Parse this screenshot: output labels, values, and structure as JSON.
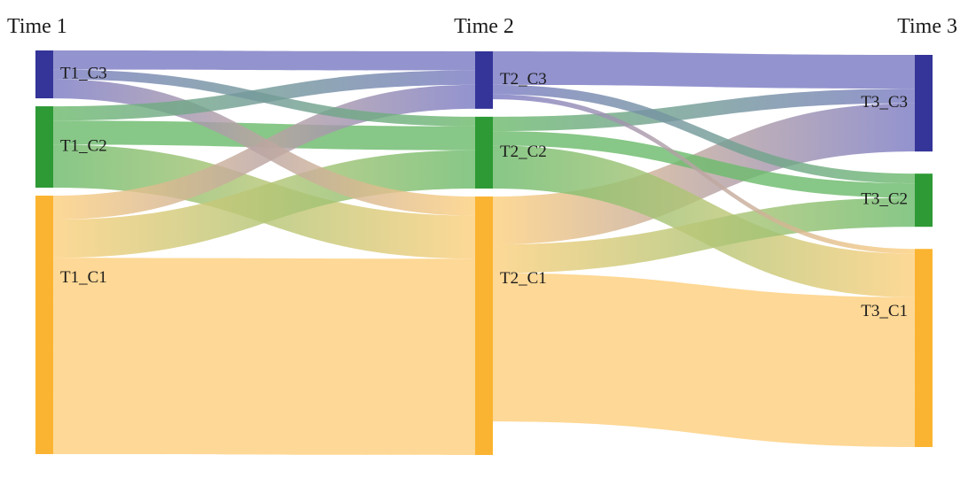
{
  "colors": {
    "C1": "#fbb431",
    "C2": "#2e9a35",
    "C3": "#343499",
    "link_C1": "#fdd07f",
    "link_C2": "#6dbb6d",
    "link_C3": "#7b7bc4"
  },
  "times": [
    {
      "label": "Time 1"
    },
    {
      "label": "Time 2"
    },
    {
      "label": "Time 3"
    }
  ],
  "nodes": [
    {
      "id": "T1_C3",
      "label": "T1_C3",
      "time": 0,
      "cluster": "C3",
      "value": 10
    },
    {
      "id": "T1_C2",
      "label": "T1_C2",
      "time": 0,
      "cluster": "C2",
      "value": 17
    },
    {
      "id": "T1_C1",
      "label": "T1_C1",
      "time": 0,
      "cluster": "C1",
      "value": 54
    },
    {
      "id": "T2_C3",
      "label": "T2_C3",
      "time": 1,
      "cluster": "C3",
      "value": 12
    },
    {
      "id": "T2_C2",
      "label": "T2_C2",
      "time": 1,
      "cluster": "C2",
      "value": 15
    },
    {
      "id": "T2_C1",
      "label": "T2_C1",
      "time": 1,
      "cluster": "C1",
      "value": 54
    },
    {
      "id": "T3_C3",
      "label": "T3_C3",
      "time": 2,
      "cluster": "C3",
      "value": 20
    },
    {
      "id": "T3_C2",
      "label": "T3_C2",
      "time": 2,
      "cluster": "C2",
      "value": 11
    },
    {
      "id": "T3_C1",
      "label": "T3_C1",
      "time": 2,
      "cluster": "C1",
      "value": 41
    }
  ],
  "links": [
    {
      "source": "T1_C3",
      "target": "T2_C3",
      "value": 4
    },
    {
      "source": "T1_C3",
      "target": "T2_C2",
      "value": 2
    },
    {
      "source": "T1_C3",
      "target": "T2_C1",
      "value": 4
    },
    {
      "source": "T1_C2",
      "target": "T2_C3",
      "value": 3
    },
    {
      "source": "T1_C2",
      "target": "T2_C2",
      "value": 5
    },
    {
      "source": "T1_C2",
      "target": "T2_C1",
      "value": 9
    },
    {
      "source": "T1_C1",
      "target": "T2_C3",
      "value": 5
    },
    {
      "source": "T1_C1",
      "target": "T2_C2",
      "value": 8
    },
    {
      "source": "T1_C1",
      "target": "T2_C1",
      "value": 41
    },
    {
      "source": "T2_C3",
      "target": "T3_C3",
      "value": 7
    },
    {
      "source": "T2_C3",
      "target": "T3_C2",
      "value": 2
    },
    {
      "source": "T2_C3",
      "target": "T3_C1",
      "value": 1
    },
    {
      "source": "T2_C2",
      "target": "T3_C3",
      "value": 3
    },
    {
      "source": "T2_C2",
      "target": "T3_C2",
      "value": 3
    },
    {
      "source": "T2_C2",
      "target": "T3_C1",
      "value": 9
    },
    {
      "source": "T2_C1",
      "target": "T3_C3",
      "value": 10
    },
    {
      "source": "T2_C1",
      "target": "T3_C2",
      "value": 6
    },
    {
      "source": "T2_C1",
      "target": "T3_C1",
      "value": 31
    }
  ]
}
